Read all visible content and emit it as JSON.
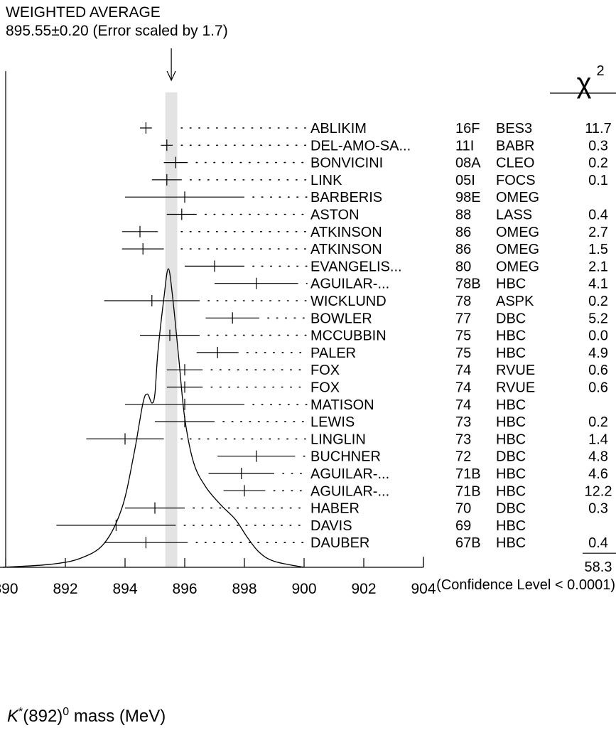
{
  "average": {
    "title": "WEIGHTED AVERAGE",
    "value_text": "895.55±0.20 (Error scaled by 1.7)",
    "value": 895.55,
    "error": 0.2,
    "band_color": "#e3e3e3"
  },
  "chi2": {
    "symbol": "χ",
    "superscript": "2",
    "total": "58.3",
    "confidence": "(Confidence Level < 0.0001)"
  },
  "axis": {
    "label_symbol": "K",
    "label_star": "*",
    "label_middle": "(892)",
    "label_sup": "0",
    "label_tail": " mass (MeV)"
  },
  "chart_data": {
    "type": "scatter",
    "xlim": [
      890,
      904
    ],
    "xticks": [
      890,
      892,
      894,
      896,
      898,
      900,
      902,
      904
    ],
    "tick_labels": [
      "890",
      "892",
      "894",
      "896",
      "898",
      "900",
      "902",
      "904"
    ],
    "measurements": [
      {
        "name": "ABLIKIM",
        "ref": "16F",
        "exp": "BES3",
        "chi2": "11.7",
        "value": 894.7,
        "lo": 894.5,
        "hi": 894.9
      },
      {
        "name": "DEL-AMO-SA...",
        "ref": "11I",
        "exp": "BABR",
        "chi2": "0.3",
        "value": 895.4,
        "lo": 895.2,
        "hi": 895.6
      },
      {
        "name": "BONVICINI",
        "ref": "08A",
        "exp": "CLEO",
        "chi2": "0.2",
        "value": 895.7,
        "lo": 895.3,
        "hi": 896.1
      },
      {
        "name": "LINK",
        "ref": "05I",
        "exp": "FOCS",
        "chi2": "0.1",
        "value": 895.4,
        "lo": 894.9,
        "hi": 895.9
      },
      {
        "name": "BARBERIS",
        "ref": "98E",
        "exp": "OMEG",
        "chi2": "",
        "value": 896.0,
        "lo": 894.0,
        "hi": 898.0
      },
      {
        "name": "ASTON",
        "ref": "88",
        "exp": "LASS",
        "chi2": "0.4",
        "value": 895.9,
        "lo": 895.4,
        "hi": 896.4
      },
      {
        "name": "ATKINSON",
        "ref": "86",
        "exp": "OMEG",
        "chi2": "2.7",
        "value": 894.5,
        "lo": 893.9,
        "hi": 895.1
      },
      {
        "name": "ATKINSON",
        "ref": "86",
        "exp": "OMEG",
        "chi2": "1.5",
        "value": 894.6,
        "lo": 893.9,
        "hi": 895.3
      },
      {
        "name": "EVANGELIS...",
        "ref": "80",
        "exp": "OMEG",
        "chi2": "2.1",
        "value": 897.0,
        "lo": 896.0,
        "hi": 898.0
      },
      {
        "name": "AGUILAR-...",
        "ref": "78B",
        "exp": "HBC",
        "chi2": "4.1",
        "value": 898.4,
        "lo": 897.0,
        "hi": 899.8
      },
      {
        "name": "WICKLUND",
        "ref": "78",
        "exp": "ASPK",
        "chi2": "0.2",
        "value": 894.9,
        "lo": 893.3,
        "hi": 896.5
      },
      {
        "name": "BOWLER",
        "ref": "77",
        "exp": "DBC",
        "chi2": "5.2",
        "value": 897.6,
        "lo": 896.7,
        "hi": 898.5
      },
      {
        "name": "MCCUBBIN",
        "ref": "75",
        "exp": "HBC",
        "chi2": "0.0",
        "value": 895.5,
        "lo": 894.5,
        "hi": 896.5
      },
      {
        "name": "PALER",
        "ref": "75",
        "exp": "HBC",
        "chi2": "4.9",
        "value": 897.1,
        "lo": 896.4,
        "hi": 897.8
      },
      {
        "name": "FOX",
        "ref": "74",
        "exp": "RVUE",
        "chi2": "0.6",
        "value": 896.0,
        "lo": 895.4,
        "hi": 896.6
      },
      {
        "name": "FOX",
        "ref": "74",
        "exp": "RVUE",
        "chi2": "0.6",
        "value": 896.0,
        "lo": 895.4,
        "hi": 896.6
      },
      {
        "name": "MATISON",
        "ref": "74",
        "exp": "HBC",
        "chi2": "",
        "value": 896.0,
        "lo": 894.0,
        "hi": 898.0
      },
      {
        "name": "LEWIS",
        "ref": "73",
        "exp": "HBC",
        "chi2": "0.2",
        "value": 896.0,
        "lo": 895.0,
        "hi": 897.0
      },
      {
        "name": "LINGLIN",
        "ref": "73",
        "exp": "HBC",
        "chi2": "1.4",
        "value": 894.0,
        "lo": 892.7,
        "hi": 895.3
      },
      {
        "name": "BUCHNER",
        "ref": "72",
        "exp": "DBC",
        "chi2": "4.8",
        "value": 898.4,
        "lo": 897.1,
        "hi": 899.7
      },
      {
        "name": "AGUILAR-...",
        "ref": "71B",
        "exp": "HBC",
        "chi2": "4.6",
        "value": 897.9,
        "lo": 896.8,
        "hi": 899.0
      },
      {
        "name": "AGUILAR-...",
        "ref": "71B",
        "exp": "HBC",
        "chi2": "12.2",
        "value": 898.0,
        "lo": 897.3,
        "hi": 898.7
      },
      {
        "name": "HABER",
        "ref": "70",
        "exp": "DBC",
        "chi2": "0.3",
        "value": 895.0,
        "lo": 894.0,
        "hi": 896.0
      },
      {
        "name": "DAVIS",
        "ref": "69",
        "exp": "HBC",
        "chi2": "",
        "value": 893.7,
        "lo": 891.7,
        "hi": 895.7
      },
      {
        "name": "DAUBER",
        "ref": "67B",
        "exp": "HBC",
        "chi2": "0.4",
        "value": 894.7,
        "lo": 893.3,
        "hi": 896.1
      }
    ],
    "ideogram": [
      [
        889.9,
        0.0
      ],
      [
        891.5,
        0.01
      ],
      [
        892.5,
        0.03
      ],
      [
        893.3,
        0.08
      ],
      [
        893.9,
        0.2
      ],
      [
        894.3,
        0.38
      ],
      [
        894.6,
        0.55
      ],
      [
        894.75,
        0.58
      ],
      [
        894.9,
        0.55
      ],
      [
        895.0,
        0.58
      ],
      [
        895.1,
        0.72
      ],
      [
        895.3,
        0.9
      ],
      [
        895.45,
        1.0
      ],
      [
        895.6,
        0.9
      ],
      [
        895.8,
        0.7
      ],
      [
        896.0,
        0.5
      ],
      [
        896.3,
        0.35
      ],
      [
        896.7,
        0.27
      ],
      [
        897.2,
        0.21
      ],
      [
        897.7,
        0.16
      ],
      [
        898.1,
        0.1
      ],
      [
        898.5,
        0.05
      ],
      [
        899.0,
        0.02
      ],
      [
        900.0,
        0.0
      ]
    ]
  }
}
